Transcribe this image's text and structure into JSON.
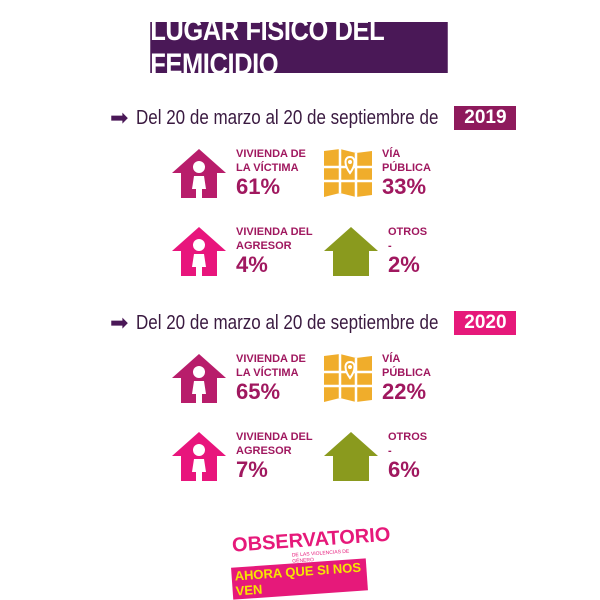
{
  "title": "LUGAR FÍSICO DEL FEMICIDIO",
  "colors": {
    "title_bg": "#4a1857",
    "victim_house": "#b81d6b",
    "aggressor_house": "#e8157c",
    "map": "#f0ad2b",
    "others": "#8a9a1e",
    "text": "#a0185f",
    "year_2019": "#8e1a5c",
    "year_2020": "#e6197a"
  },
  "sections": [
    {
      "period": "Del 20 de marzo al 20 de septiembre de",
      "year": "2019",
      "items": [
        {
          "label1": "VIVIENDA DE",
          "label2": "LA VÍCTIMA",
          "value": "61%",
          "icon": "house-woman-icon"
        },
        {
          "label1": "VÍA",
          "label2": "PÚBLICA",
          "value": "33%",
          "icon": "map-pin-icon"
        },
        {
          "label1": "VIVIENDA DEL",
          "label2": "AGRESOR",
          "value": "4%",
          "icon": "house-woman-icon"
        },
        {
          "label1": "OTROS",
          "label2": "-",
          "value": "2%",
          "icon": "house-icon"
        }
      ]
    },
    {
      "period": "Del 20 de marzo al 20 de septiembre de",
      "year": "2020",
      "items": [
        {
          "label1": "VIVIENDA DE",
          "label2": "LA VÍCTIMA",
          "value": "65%",
          "icon": "house-woman-icon"
        },
        {
          "label1": "VÍA",
          "label2": "PÚBLICA",
          "value": "22%",
          "icon": "map-pin-icon"
        },
        {
          "label1": "VIVIENDA DEL",
          "label2": "AGRESOR",
          "value": "7%",
          "icon": "house-woman-icon"
        },
        {
          "label1": "OTROS",
          "label2": "-",
          "value": "6%",
          "icon": "house-icon"
        }
      ]
    }
  ],
  "logo": {
    "line1": "OBSERVATORIO",
    "line2": "DE LAS VIOLENCIAS DE GÉNERO",
    "line3": "AHORA QUE SI NOS VEN"
  }
}
